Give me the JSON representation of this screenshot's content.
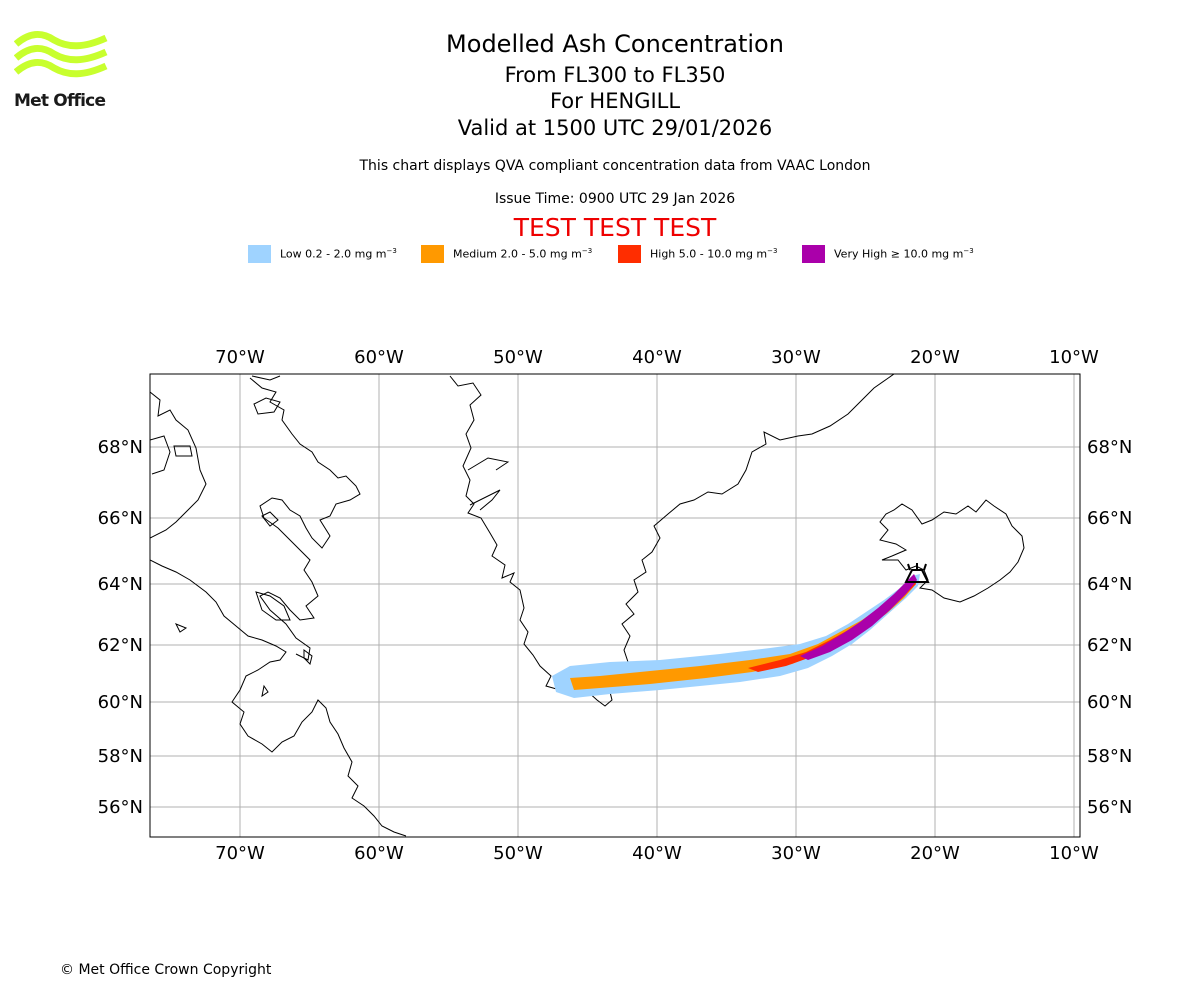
{
  "logo": {
    "text": "Met Office",
    "color": "#c8ff2e"
  },
  "title": "Modelled Ash Concentration",
  "level_range": "From FL300 to FL350",
  "volcano": "For HENGILL",
  "valid_time": "Valid at 1500 UTC 29/01/2026",
  "note": "This chart displays QVA compliant concentration data from VAAC London",
  "issue_time": "Issue Time: 0900 UTC 29 Jan 2026",
  "test_banner": "TEST TEST TEST",
  "legend": [
    {
      "label": "Low 0.2 - 2.0 mg m",
      "color": "#9fd3ff"
    },
    {
      "label": "Medium 2.0 - 5.0 mg m",
      "color": "#ff9900"
    },
    {
      "label": "High 5.0 - 10.0 mg m",
      "color": "#ff2d00"
    },
    {
      "label": "Very High ≥ 10.0 mg m",
      "color": "#aa00aa"
    }
  ],
  "legend_unit_exponent": "−3",
  "map": {
    "longitude_labels": [
      "70°W",
      "60°W",
      "50°W",
      "40°W",
      "30°W",
      "20°W",
      "10°W"
    ],
    "latitude_labels": [
      "68°N",
      "66°N",
      "64°N",
      "62°N",
      "60°N",
      "58°N",
      "56°N"
    ],
    "grid": true,
    "volcano_location": {
      "lon": -21.3,
      "lat": 64.1
    }
  },
  "footer": "© Met Office Crown Copyright"
}
